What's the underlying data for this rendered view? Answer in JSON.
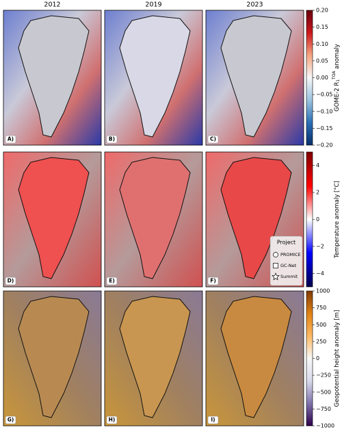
{
  "figure": {
    "columns": [
      "2012",
      "2019",
      "2023"
    ],
    "panels": [
      "A)",
      "B)",
      "C)",
      "D)",
      "E)",
      "F)",
      "G)",
      "H)",
      "I)"
    ],
    "colorbars": [
      {
        "type": "colorbar",
        "label": {
          "base": "GOME-2 R",
          "sub": "1",
          "sup": "TOA",
          "suffix": " anomaly"
        },
        "lim": [
          -0.2,
          0.2
        ],
        "ticks": [
          {
            "value": 0.2,
            "label": "0.20"
          },
          {
            "value": 0.15,
            "label": "0.15"
          },
          {
            "value": 0.1,
            "label": "0.10"
          },
          {
            "value": 0.05,
            "label": "0.05"
          },
          {
            "value": 0,
            "label": "0.00"
          },
          {
            "value": -0.05,
            "label": "−0.05"
          },
          {
            "value": -0.1,
            "label": "−0.10"
          },
          {
            "value": -0.15,
            "label": "−0.15"
          },
          {
            "value": -0.2,
            "label": "−0.20"
          }
        ],
        "colors": [
          "#08306b",
          "#2c6fb5",
          "#9cc4e0",
          "#f7f7f7",
          "#f4a582",
          "#cb181d",
          "#67000d"
        ]
      },
      {
        "type": "colorbar",
        "label": {
          "base": "Temperature anomaly [°C]"
        },
        "lim": [
          -5,
          5
        ],
        "ticks": [
          4,
          2,
          0,
          {
            "value": -2,
            "label": "−2"
          },
          {
            "value": -4,
            "label": "−4"
          }
        ],
        "colors": [
          "#00004c",
          "#0000ff",
          "#ffffff",
          "#ff0000",
          "#7f0000"
        ]
      },
      {
        "type": "colorbar",
        "label": {
          "base": "Geopotential height anomaly [m]"
        },
        "lim": [
          -1000,
          1000
        ],
        "ticks": [
          {
            "value": 1000,
            "label": "1000"
          },
          750,
          500,
          250,
          0,
          {
            "value": -250,
            "label": "−250"
          },
          {
            "value": -500,
            "label": "−500"
          },
          {
            "value": -750,
            "label": "−750"
          },
          {
            "value": -1000,
            "label": "−1000"
          }
        ],
        "colors": [
          "#2d004b",
          "#8073ac",
          "#d8daeb",
          "#f7f7f7",
          "#fdb863",
          "#e08214",
          "#7f3b08"
        ]
      }
    ],
    "legend": {
      "title": "Project",
      "entries": [
        "PROMICE",
        "GC-Net",
        "Summit"
      ]
    }
  }
}
